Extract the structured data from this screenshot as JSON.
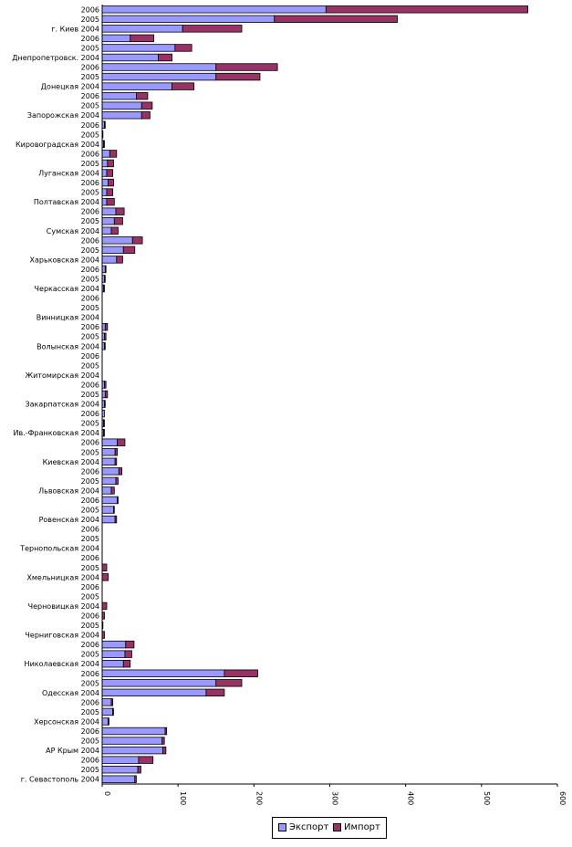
{
  "chart_data": {
    "type": "bar",
    "orientation": "horizontal",
    "stacked": true,
    "series": [
      {
        "name": "Экспорт",
        "color": "#9999FF"
      },
      {
        "name": "Импорт",
        "color": "#993366"
      }
    ],
    "xlim": [
      0,
      600
    ],
    "xticks": [
      "0",
      "100",
      "200",
      "300",
      "400",
      "500",
      "600"
    ],
    "grid": false,
    "legend": "bottom",
    "groups": [
      {
        "label": "г. Севастополь",
        "bars": [
          {
            "year": "2004",
            "export": 43,
            "import": 2
          },
          {
            "year": "2005",
            "export": 47,
            "import": 4
          },
          {
            "year": "2006",
            "export": 48,
            "import": 19
          }
        ]
      },
      {
        "label": "АР Крым",
        "bars": [
          {
            "year": "2004",
            "export": 80,
            "import": 4
          },
          {
            "year": "2005",
            "export": 79,
            "import": 3
          },
          {
            "year": "2006",
            "export": 83,
            "import": 2
          }
        ]
      },
      {
        "label": "Херсонская",
        "bars": [
          {
            "year": "2004",
            "export": 8,
            "import": 1
          },
          {
            "year": "2005",
            "export": 14,
            "import": 1
          },
          {
            "year": "2006",
            "export": 12,
            "import": 2
          }
        ]
      },
      {
        "label": "Одесская",
        "bars": [
          {
            "year": "2004",
            "export": 137,
            "import": 24
          },
          {
            "year": "2005",
            "export": 150,
            "import": 34
          },
          {
            "year": "2006",
            "export": 161,
            "import": 44
          }
        ]
      },
      {
        "label": "Николаевская",
        "bars": [
          {
            "year": "2004",
            "export": 28,
            "import": 9
          },
          {
            "year": "2005",
            "export": 30,
            "import": 9
          },
          {
            "year": "2006",
            "export": 31,
            "import": 11
          }
        ]
      },
      {
        "label": "Черниговская",
        "bars": [
          {
            "year": "2004",
            "export": 0,
            "import": 3
          },
          {
            "year": "2005",
            "export": 0,
            "import": 1
          },
          {
            "year": "2006",
            "export": 0,
            "import": 3
          }
        ]
      },
      {
        "label": "Черновицкая",
        "bars": [
          {
            "year": "2004",
            "export": 0,
            "import": 6
          },
          {
            "year": "2005",
            "export": 0,
            "import": 0
          },
          {
            "year": "2006",
            "export": 0,
            "import": 0
          }
        ]
      },
      {
        "label": "Хмельницкая",
        "bars": [
          {
            "year": "2004",
            "export": 0,
            "import": 8
          },
          {
            "year": "2005",
            "export": 0,
            "import": 6
          },
          {
            "year": "2006",
            "export": 0,
            "import": 0
          }
        ]
      },
      {
        "label": "Тернопольская",
        "bars": [
          {
            "year": "2004",
            "export": 0,
            "import": 0
          },
          {
            "year": "2005",
            "export": 0,
            "import": 0
          },
          {
            "year": "2006",
            "export": 0,
            "import": 0
          }
        ]
      },
      {
        "label": "Ровенская",
        "bars": [
          {
            "year": "2004",
            "export": 17,
            "import": 2
          },
          {
            "year": "2005",
            "export": 15,
            "import": 1
          },
          {
            "year": "2006",
            "export": 20,
            "import": 1
          }
        ]
      },
      {
        "label": "Львовская",
        "bars": [
          {
            "year": "2004",
            "export": 12,
            "import": 4
          },
          {
            "year": "2005",
            "export": 18,
            "import": 3
          },
          {
            "year": "2006",
            "export": 22,
            "import": 4
          }
        ]
      },
      {
        "label": "Киевская",
        "bars": [
          {
            "year": "2004",
            "export": 17,
            "import": 2
          },
          {
            "year": "2005",
            "export": 17,
            "import": 3
          },
          {
            "year": "2006",
            "export": 20,
            "import": 10
          }
        ]
      },
      {
        "label": "Ив.-Франковская",
        "bars": [
          {
            "year": "2004",
            "export": 2,
            "import": 1
          },
          {
            "year": "2005",
            "export": 2,
            "import": 1
          },
          {
            "year": "2006",
            "export": 3,
            "import": 0
          }
        ]
      },
      {
        "label": "Закарпатская",
        "bars": [
          {
            "year": "2004",
            "export": 3,
            "import": 1
          },
          {
            "year": "2005",
            "export": 4,
            "import": 3
          },
          {
            "year": "2006",
            "export": 3,
            "import": 2
          }
        ]
      },
      {
        "label": "Житомирская",
        "bars": [
          {
            "year": "2004",
            "export": 0,
            "import": 0
          },
          {
            "year": "2005",
            "export": 0,
            "import": 0
          },
          {
            "year": "2006",
            "export": 0,
            "import": 0
          }
        ]
      },
      {
        "label": "Волынская",
        "bars": [
          {
            "year": "2004",
            "export": 3,
            "import": 1
          },
          {
            "year": "2005",
            "export": 3,
            "import": 2
          },
          {
            "year": "2006",
            "export": 4,
            "import": 3
          }
        ]
      },
      {
        "label": "Винницкая",
        "bars": [
          {
            "year": "2004",
            "export": 0,
            "import": 0
          },
          {
            "year": "2005",
            "export": 0,
            "import": 0
          },
          {
            "year": "2006",
            "export": 0,
            "import": 0
          }
        ]
      },
      {
        "label": "Черкасская",
        "bars": [
          {
            "year": "2004",
            "export": 2,
            "import": 1
          },
          {
            "year": "2005",
            "export": 3,
            "import": 1
          },
          {
            "year": "2006",
            "export": 4,
            "import": 1
          }
        ]
      },
      {
        "label": "Харьковская",
        "bars": [
          {
            "year": "2004",
            "export": 19,
            "import": 8
          },
          {
            "year": "2005",
            "export": 28,
            "import": 15
          },
          {
            "year": "2006",
            "export": 40,
            "import": 13
          }
        ]
      },
      {
        "label": "Сумская",
        "bars": [
          {
            "year": "2004",
            "export": 12,
            "import": 9
          },
          {
            "year": "2005",
            "export": 16,
            "import": 11
          },
          {
            "year": "2006",
            "export": 18,
            "import": 11
          }
        ]
      },
      {
        "label": "Полтавская",
        "bars": [
          {
            "year": "2004",
            "export": 6,
            "import": 10
          },
          {
            "year": "2005",
            "export": 6,
            "import": 8
          },
          {
            "year": "2006",
            "export": 8,
            "import": 7
          }
        ]
      },
      {
        "label": "Луганская",
        "bars": [
          {
            "year": "2004",
            "export": 6,
            "import": 8
          },
          {
            "year": "2005",
            "export": 7,
            "import": 8
          },
          {
            "year": "2006",
            "export": 10,
            "import": 9
          }
        ]
      },
      {
        "label": "Кировоградская",
        "bars": [
          {
            "year": "2004",
            "export": 2,
            "import": 1
          },
          {
            "year": "2005",
            "export": 1,
            "import": 0
          },
          {
            "year": "2006",
            "export": 3,
            "import": 1
          }
        ]
      },
      {
        "label": "Запорожская",
        "bars": [
          {
            "year": "2004",
            "export": 52,
            "import": 11
          },
          {
            "year": "2005",
            "export": 52,
            "import": 14
          },
          {
            "year": "2006",
            "export": 45,
            "import": 15
          }
        ]
      },
      {
        "label": "Донецкая",
        "bars": [
          {
            "year": "2004",
            "export": 92,
            "import": 29
          },
          {
            "year": "2005",
            "export": 150,
            "import": 58
          },
          {
            "year": "2006",
            "export": 150,
            "import": 81
          }
        ]
      },
      {
        "label": "Днепропетровск.",
        "bars": [
          {
            "year": "2004",
            "export": 74,
            "import": 18
          },
          {
            "year": "2005",
            "export": 96,
            "import": 22
          },
          {
            "year": "2006",
            "export": 37,
            "import": 31
          }
        ]
      },
      {
        "label": "г. Киев",
        "bars": [
          {
            "year": "2004",
            "export": 106,
            "import": 78
          },
          {
            "year": "2005",
            "export": 227,
            "import": 162
          },
          {
            "year": "2006",
            "export": 295,
            "import": 266
          }
        ]
      }
    ]
  }
}
